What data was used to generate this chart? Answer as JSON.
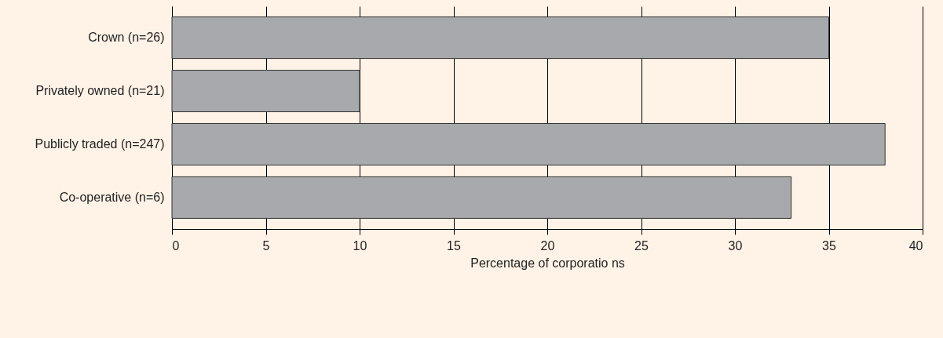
{
  "chart_data": {
    "type": "bar",
    "orientation": "horizontal",
    "categories": [
      "Crown (n=26)",
      "Privately owned (n=21)",
      "Publicly traded (n=247)",
      "Co-operative (n=6)"
    ],
    "values": [
      35,
      10,
      38,
      33
    ],
    "color": "#a7a9ac",
    "xlabel": "Percentage of corporatio ns",
    "xlim": [
      0,
      40
    ],
    "xticks": [
      0,
      5,
      10,
      15,
      20,
      25,
      30,
      35,
      40
    ],
    "grid": "x"
  }
}
